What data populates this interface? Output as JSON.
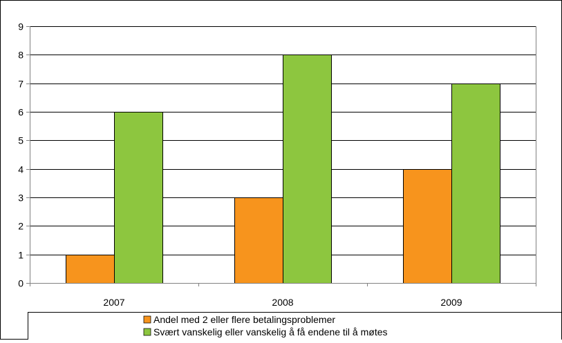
{
  "chart_data": {
    "type": "bar",
    "categories": [
      "2007",
      "2008",
      "2009"
    ],
    "series": [
      {
        "name": "Andel med 2 eller flere betalingsproblemer",
        "color": "#f7941d",
        "values": [
          1,
          3,
          4
        ]
      },
      {
        "name": "Svært vanskelig eller vanskelig å få endene til å møtes",
        "color": "#8dc63f",
        "values": [
          6,
          8,
          7
        ]
      }
    ],
    "y_ticks": [
      "0",
      "1",
      "2",
      "3",
      "4",
      "5",
      "6",
      "7",
      "8",
      "9"
    ],
    "ylim": [
      0,
      9
    ],
    "grid": true,
    "legend_position": "bottom"
  }
}
